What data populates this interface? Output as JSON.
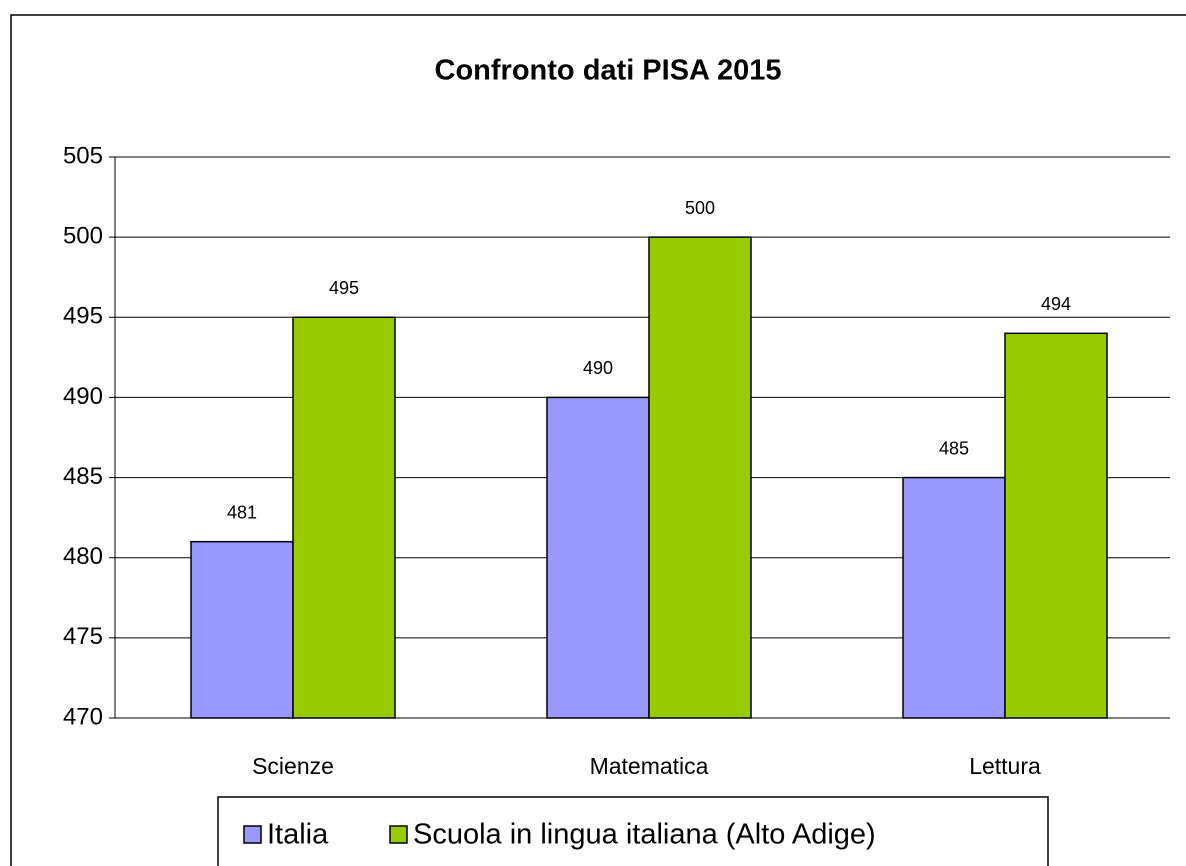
{
  "chart_data": {
    "type": "bar",
    "title": "Confronto dati PISA 2015",
    "categories": [
      "Scienze",
      "Matematica",
      "Lettura"
    ],
    "series": [
      {
        "name": "Italia",
        "color": "#9999ff",
        "values": [
          481,
          490,
          485
        ]
      },
      {
        "name": "Scuola in lingua italiana (Alto Adige)",
        "color": "#99cc00",
        "values": [
          495,
          500,
          494
        ]
      }
    ],
    "ylim": [
      470,
      505
    ],
    "yticks": [
      470,
      475,
      480,
      485,
      490,
      495,
      500,
      505
    ],
    "grid": true,
    "legend": "bottom"
  }
}
